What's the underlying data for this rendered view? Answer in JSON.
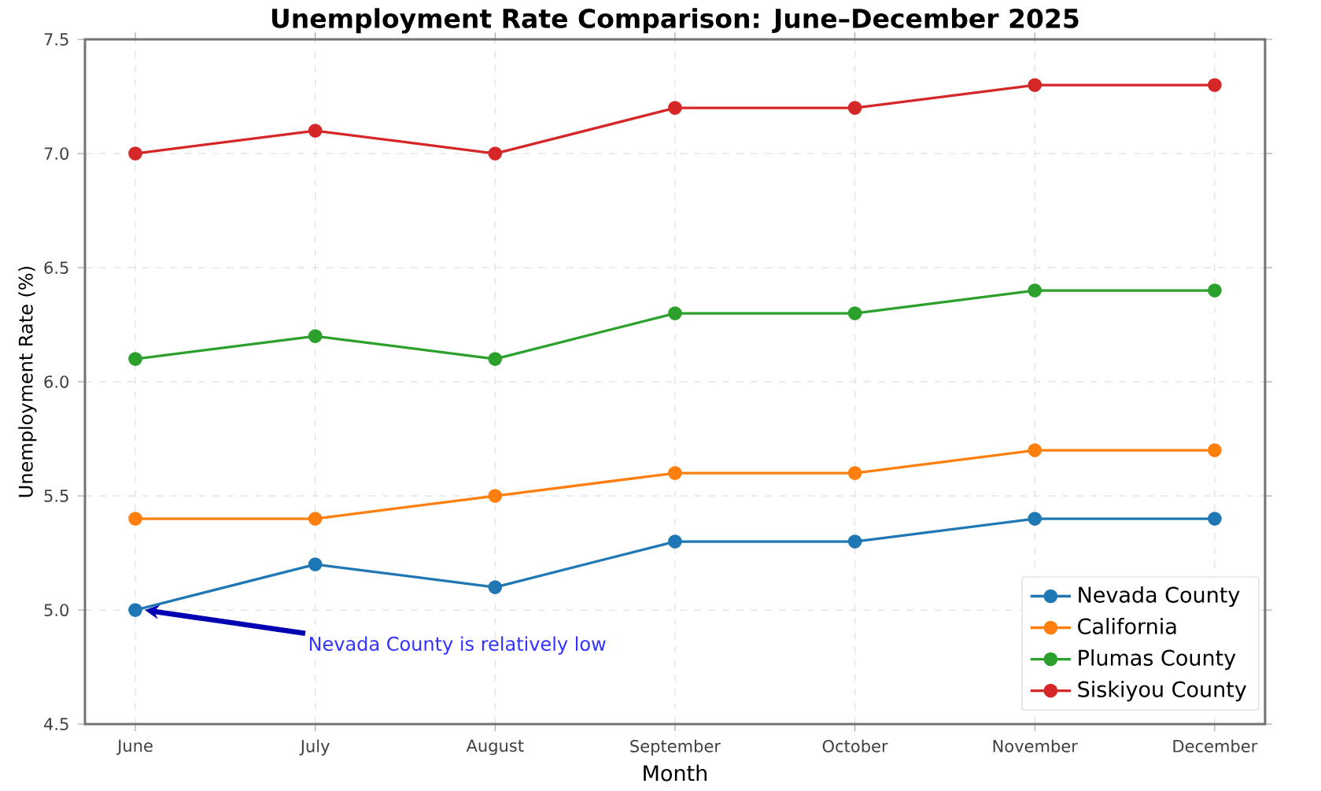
{
  "chart_data": {
    "type": "line",
    "title": "Unemployment Rate Comparison: June–December 2025",
    "xlabel": "Month",
    "ylabel": "Unemployment Rate (%)",
    "categories": [
      "June",
      "July",
      "August",
      "September",
      "October",
      "November",
      "December"
    ],
    "series": [
      {
        "name": "Nevada County",
        "color": "#1f77b4",
        "values": [
          5.0,
          5.2,
          5.1,
          5.3,
          5.3,
          5.4,
          5.4
        ]
      },
      {
        "name": "California",
        "color": "#ff7f0e",
        "values": [
          5.4,
          5.4,
          5.5,
          5.6,
          5.6,
          5.7,
          5.7
        ]
      },
      {
        "name": "Plumas County",
        "color": "#2ca02c",
        "values": [
          6.1,
          6.2,
          6.1,
          6.3,
          6.3,
          6.4,
          6.4
        ]
      },
      {
        "name": "Siskiyou County",
        "color": "#d62728",
        "values": [
          7.0,
          7.1,
          7.0,
          7.2,
          7.2,
          7.3,
          7.3
        ]
      }
    ],
    "ylim": [
      4.5,
      7.5
    ],
    "yticks": [
      4.5,
      {
        "value": 5.0,
        "label": "5.0"
      },
      5.5,
      {
        "value": 6.0,
        "label": "6.0"
      },
      6.5,
      {
        "value": 7.0,
        "label": "7.0"
      },
      7.5
    ],
    "annotations": [
      "Nevada County is relatively low"
    ],
    "grid": true,
    "legend": "bottom right",
    "marker": "circle",
    "line_style": "solid"
  }
}
